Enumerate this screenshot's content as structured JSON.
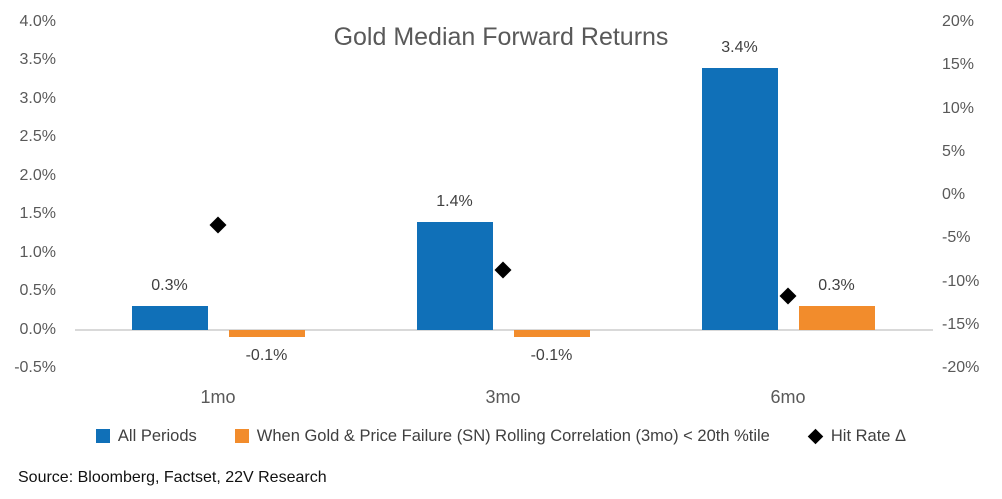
{
  "source_note": "Source: Bloomberg, Factset, 22V Research",
  "chart_data": {
    "type": "bar",
    "title": "Gold Median Forward Returns",
    "categories": [
      "1mo",
      "3mo",
      "6mo"
    ],
    "series": [
      {
        "name": "All Periods",
        "type": "bar",
        "axis": "left",
        "color": "#1070b8",
        "values": [
          0.3,
          1.4,
          3.4
        ],
        "labels": [
          "0.3%",
          "1.4%",
          "3.4%"
        ]
      },
      {
        "name": "When Gold & Price Failure (SN) Rolling Correlation (3mo) < 20th %tile",
        "type": "bar",
        "axis": "left",
        "color": "#f28c2c",
        "values": [
          -0.1,
          -0.1,
          0.3
        ],
        "labels": [
          "-0.1%",
          "-0.1%",
          "0.3%"
        ]
      },
      {
        "name": "Hit Rate Δ",
        "type": "scatter",
        "marker": "diamond",
        "axis": "right",
        "color": "#000000",
        "values": [
          -3.5,
          -8.7,
          -11.7
        ]
      }
    ],
    "left_axis": {
      "min": -0.5,
      "max": 4.0,
      "ticks": [
        "4.0%",
        "3.5%",
        "3.0%",
        "2.5%",
        "2.0%",
        "1.5%",
        "1.0%",
        "0.5%",
        "0.0%",
        "-0.5%"
      ]
    },
    "right_axis": {
      "min": -20,
      "max": 20,
      "ticks": [
        "20%",
        "15%",
        "10%",
        "5%",
        "0%",
        "-5%",
        "-10%",
        "-15%",
        "-20%"
      ]
    },
    "grid": "zero-line-only",
    "legend_position": "bottom"
  }
}
